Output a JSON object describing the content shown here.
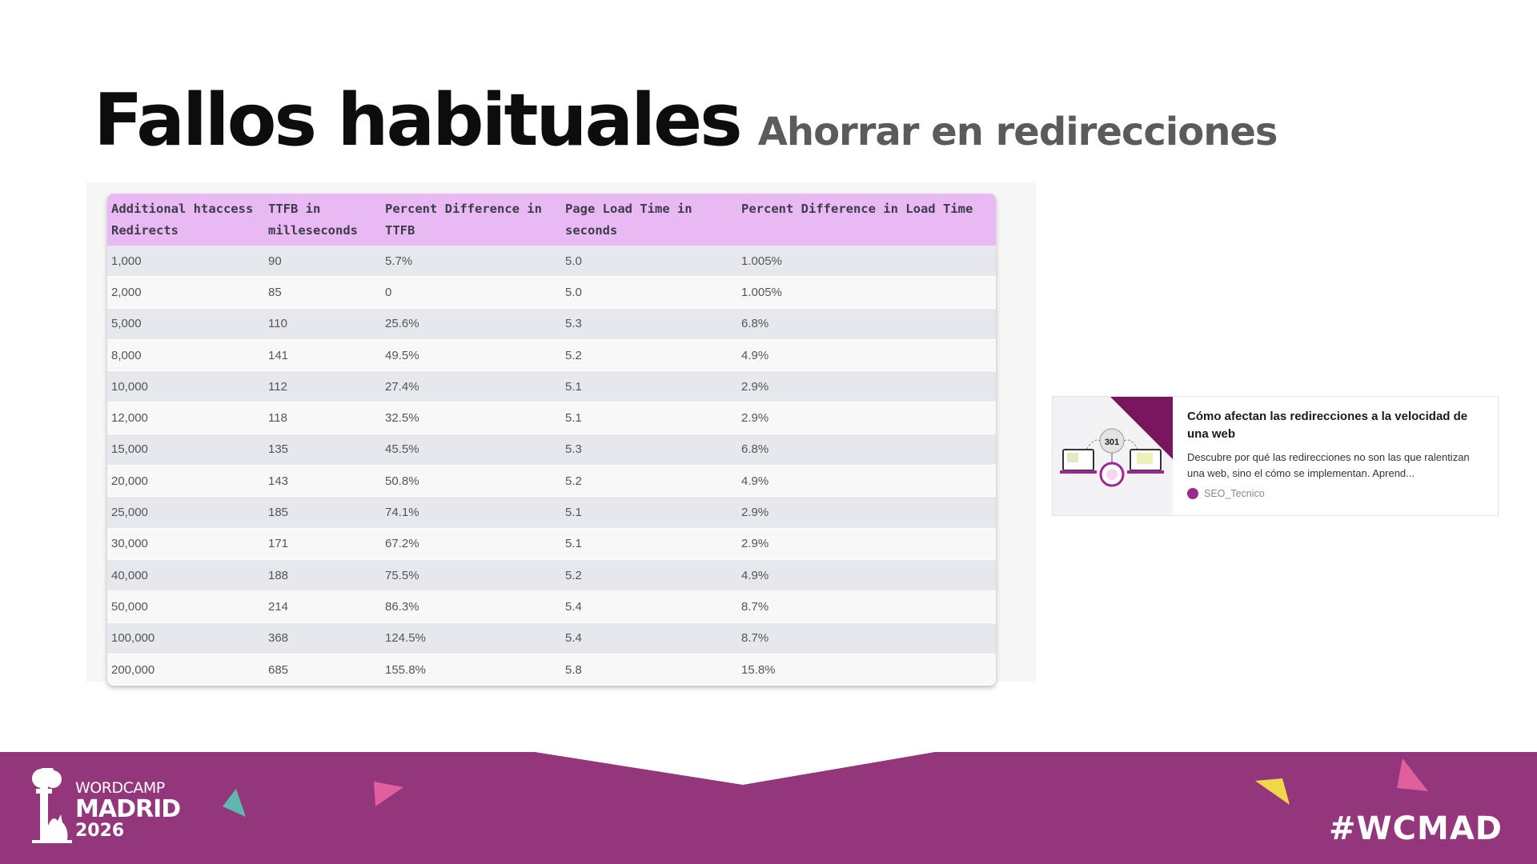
{
  "slide": {
    "title": "Fallos habituales",
    "subtitle": "Ahorrar en redirecciones"
  },
  "table": {
    "headers": [
      "Additional htaccess Redirects",
      "TTFB in milleseconds",
      "Percent Difference in TTFB",
      "Page Load Time in seconds",
      "Percent Difference in Load Time"
    ],
    "rows": [
      [
        "1,000",
        "90",
        "5.7%",
        "5.0",
        "1.005%"
      ],
      [
        "2,000",
        "85",
        "0",
        "5.0",
        "1.005%"
      ],
      [
        "5,000",
        "110",
        "25.6%",
        "5.3",
        "6.8%"
      ],
      [
        "8,000",
        "141",
        "49.5%",
        "5.2",
        "4.9%"
      ],
      [
        "10,000",
        "112",
        "27.4%",
        "5.1",
        "2.9%"
      ],
      [
        "12,000",
        "118",
        "32.5%",
        "5.1",
        "2.9%"
      ],
      [
        "15,000",
        "135",
        "45.5%",
        "5.3",
        "6.8%"
      ],
      [
        "20,000",
        "143",
        "50.8%",
        "5.2",
        "4.9%"
      ],
      [
        "25,000",
        "185",
        "74.1%",
        "5.1",
        "2.9%"
      ],
      [
        "30,000",
        "171",
        "67.2%",
        "5.1",
        "2.9%"
      ],
      [
        "40,000",
        "188",
        "75.5%",
        "5.2",
        "4.9%"
      ],
      [
        "50,000",
        "214",
        "86.3%",
        "5.4",
        "8.7%"
      ],
      [
        "100,000",
        "368",
        "124.5%",
        "5.4",
        "8.7%"
      ],
      [
        "200,000",
        "685",
        "155.8%",
        "5.8",
        "15.8%"
      ]
    ]
  },
  "card": {
    "title": "Cómo afectan las redirecciones a la velocidad de una web",
    "description": "Descubre por qué las redirecciones no son las que ralentizan una web, sino el cómo se implementan. Aprend...",
    "source": "SEO_Tecnico",
    "thumb_badge": "301"
  },
  "footer": {
    "brand_line1": "WORDCAMP",
    "brand_line2": "MADRID",
    "brand_line3": "2026",
    "hashtag": "#WCMAD",
    "brand_icon": "wordcamp-tree-cat-logo"
  },
  "colors": {
    "footer_purple": "#93367c",
    "header_pink": "#e9b9f3",
    "row_stripe": "#e6e8ee",
    "triangle_teal": "#5fb8b0",
    "triangle_pink": "#e0609e",
    "triangle_yellow": "#f2d649"
  }
}
